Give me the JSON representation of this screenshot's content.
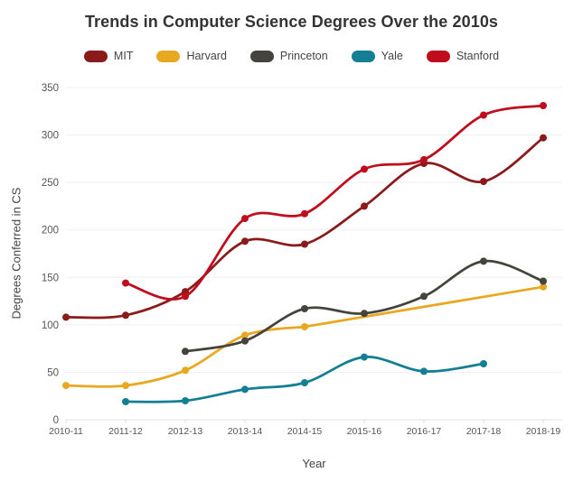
{
  "chart_data": {
    "type": "line",
    "title": "Trends in Computer Science Degrees Over the 2010s",
    "xlabel": "Year",
    "ylabel": "Degrees Conferred in CS",
    "categories": [
      "2010-11",
      "2011-12",
      "2012-13",
      "2013-14",
      "2014-15",
      "2015-16",
      "2016-17",
      "2017-18",
      "2018-19"
    ],
    "y_ticks": [
      0,
      50,
      100,
      150,
      200,
      250,
      300,
      350
    ],
    "ylim": [
      0,
      350
    ],
    "grid": "horizontal",
    "legend_position": "top",
    "line_style": "smooth",
    "series": [
      {
        "name": "MIT",
        "color": "#8B1B1B",
        "values": [
          108,
          110,
          135,
          188,
          185,
          225,
          270,
          251,
          297
        ]
      },
      {
        "name": "Harvard",
        "color": "#E8A820",
        "values": [
          36,
          36,
          52,
          89,
          98,
          null,
          null,
          null,
          140
        ]
      },
      {
        "name": "Princeton",
        "color": "#44443C",
        "values": [
          null,
          null,
          72,
          83,
          117,
          112,
          130,
          167,
          146
        ]
      },
      {
        "name": "Yale",
        "color": "#147E94",
        "values": [
          null,
          19,
          20,
          32,
          39,
          66,
          51,
          59,
          null
        ]
      },
      {
        "name": "Stanford",
        "color": "#C00D1D",
        "values": [
          null,
          144,
          130,
          212,
          217,
          264,
          274,
          321,
          331
        ]
      }
    ],
    "colors": {
      "title_text": "#333333",
      "axis_text": "#555555",
      "gridline": "#efefef",
      "baseline": "#e3e3e3",
      "background": "#ffffff"
    }
  }
}
